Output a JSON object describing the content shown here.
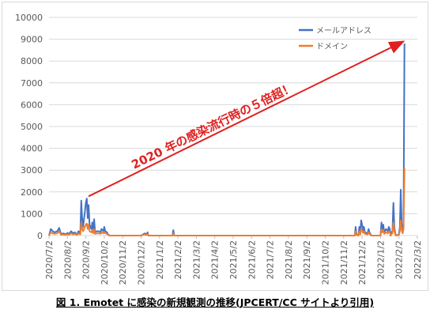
{
  "chart_data": {
    "type": "line",
    "title": "",
    "xlabel": "",
    "ylabel": "",
    "ylim": [
      0,
      10000
    ],
    "yticks": [
      "0",
      "1000",
      "2000",
      "3000",
      "4000",
      "5000",
      "6000",
      "7000",
      "8000",
      "9000",
      "10000"
    ],
    "xticks": [
      "2020/7/2",
      "2020/8/2",
      "2020/9/2",
      "2020/10/2",
      "2020/11/2",
      "2020/12/2",
      "2021/1/2",
      "2021/2/2",
      "2021/3/2",
      "2021/4/2",
      "2021/5/2",
      "2021/6/2",
      "2021/7/2",
      "2021/8/2",
      "2021/9/2",
      "2021/10/2",
      "2021/11/2",
      "2021/12/2",
      "2022/1/2",
      "2022/2/2",
      "2022/3/2"
    ],
    "legend_position": "top-right",
    "series": [
      {
        "name": "メールアドレス",
        "color": "#4472c4",
        "points": [
          [
            0,
            0
          ],
          [
            0.1,
            300
          ],
          [
            0.2,
            200
          ],
          [
            0.3,
            150
          ],
          [
            0.45,
            200
          ],
          [
            0.55,
            350
          ],
          [
            0.65,
            80
          ],
          [
            0.8,
            100
          ],
          [
            0.9,
            50
          ],
          [
            1.0,
            120
          ],
          [
            1.1,
            80
          ],
          [
            1.2,
            200
          ],
          [
            1.3,
            100
          ],
          [
            1.4,
            150
          ],
          [
            1.5,
            50
          ],
          [
            1.55,
            100
          ],
          [
            1.6,
            200
          ],
          [
            1.7,
            100
          ],
          [
            1.75,
            1600
          ],
          [
            1.8,
            800
          ],
          [
            1.85,
            400
          ],
          [
            1.95,
            1100
          ],
          [
            2.0,
            1500
          ],
          [
            2.05,
            1700
          ],
          [
            2.1,
            800
          ],
          [
            2.15,
            1400
          ],
          [
            2.2,
            500
          ],
          [
            2.3,
            300
          ],
          [
            2.35,
            600
          ],
          [
            2.4,
            200
          ],
          [
            2.45,
            750
          ],
          [
            2.5,
            150
          ],
          [
            2.6,
            200
          ],
          [
            2.7,
            200
          ],
          [
            2.8,
            150
          ],
          [
            2.85,
            300
          ],
          [
            2.95,
            200
          ],
          [
            3.0,
            400
          ],
          [
            3.05,
            200
          ],
          [
            3.15,
            150
          ],
          [
            3.2,
            50
          ],
          [
            3.3,
            0
          ],
          [
            3.5,
            0
          ],
          [
            4.0,
            0
          ],
          [
            4.5,
            0
          ],
          [
            5.0,
            0
          ],
          [
            5.2,
            100
          ],
          [
            5.3,
            50
          ],
          [
            5.35,
            150
          ],
          [
            5.4,
            0
          ],
          [
            6.0,
            0
          ],
          [
            6.6,
            0
          ],
          [
            6.7,
            0
          ],
          [
            6.75,
            250
          ],
          [
            6.8,
            0
          ],
          [
            8.0,
            0
          ],
          [
            10.0,
            0
          ],
          [
            12.0,
            0
          ],
          [
            14.0,
            0
          ],
          [
            16.0,
            0
          ],
          [
            16.5,
            0
          ],
          [
            16.6,
            0
          ],
          [
            16.65,
            400
          ],
          [
            16.7,
            50
          ],
          [
            16.8,
            0
          ],
          [
            16.85,
            400
          ],
          [
            16.9,
            100
          ],
          [
            16.95,
            700
          ],
          [
            17.0,
            500
          ],
          [
            17.05,
            250
          ],
          [
            17.1,
            400
          ],
          [
            17.15,
            150
          ],
          [
            17.3,
            100
          ],
          [
            17.35,
            300
          ],
          [
            17.4,
            150
          ],
          [
            17.5,
            0
          ],
          [
            17.7,
            0
          ],
          [
            18.0,
            0
          ],
          [
            18.05,
            600
          ],
          [
            18.1,
            300
          ],
          [
            18.15,
            500
          ],
          [
            18.2,
            150
          ],
          [
            18.3,
            300
          ],
          [
            18.4,
            200
          ],
          [
            18.45,
            400
          ],
          [
            18.5,
            300
          ],
          [
            18.55,
            0
          ],
          [
            18.6,
            150
          ],
          [
            18.65,
            200
          ],
          [
            18.7,
            1500
          ],
          [
            18.75,
            400
          ],
          [
            18.8,
            100
          ],
          [
            18.85,
            0
          ],
          [
            19.0,
            50
          ],
          [
            19.05,
            400
          ],
          [
            19.1,
            2100
          ],
          [
            19.15,
            500
          ],
          [
            19.2,
            200
          ],
          [
            19.25,
            600
          ],
          [
            19.3,
            8800
          ]
        ]
      },
      {
        "name": "ドメイン",
        "color": "#ed7d31",
        "points": [
          [
            0,
            0
          ],
          [
            0.1,
            150
          ],
          [
            0.2,
            100
          ],
          [
            0.3,
            80
          ],
          [
            0.45,
            100
          ],
          [
            0.55,
            200
          ],
          [
            0.65,
            40
          ],
          [
            0.8,
            50
          ],
          [
            0.9,
            30
          ],
          [
            1.0,
            60
          ],
          [
            1.1,
            40
          ],
          [
            1.2,
            100
          ],
          [
            1.3,
            50
          ],
          [
            1.4,
            80
          ],
          [
            1.5,
            30
          ],
          [
            1.55,
            50
          ],
          [
            1.6,
            100
          ],
          [
            1.7,
            50
          ],
          [
            1.75,
            600
          ],
          [
            1.8,
            300
          ],
          [
            1.85,
            200
          ],
          [
            1.95,
            400
          ],
          [
            2.0,
            500
          ],
          [
            2.05,
            550
          ],
          [
            2.1,
            300
          ],
          [
            2.15,
            500
          ],
          [
            2.2,
            200
          ],
          [
            2.3,
            150
          ],
          [
            2.35,
            250
          ],
          [
            2.4,
            100
          ],
          [
            2.45,
            300
          ],
          [
            2.5,
            80
          ],
          [
            2.6,
            100
          ],
          [
            2.7,
            100
          ],
          [
            2.8,
            80
          ],
          [
            2.85,
            150
          ],
          [
            2.95,
            100
          ],
          [
            3.0,
            150
          ],
          [
            3.05,
            100
          ],
          [
            3.15,
            80
          ],
          [
            3.2,
            30
          ],
          [
            3.3,
            0
          ],
          [
            3.5,
            0
          ],
          [
            4.0,
            0
          ],
          [
            4.5,
            0
          ],
          [
            5.0,
            0
          ],
          [
            5.2,
            50
          ],
          [
            5.3,
            30
          ],
          [
            5.35,
            80
          ],
          [
            5.4,
            0
          ],
          [
            6.0,
            0
          ],
          [
            6.6,
            0
          ],
          [
            6.7,
            0
          ],
          [
            6.75,
            100
          ],
          [
            6.8,
            0
          ],
          [
            8.0,
            0
          ],
          [
            10.0,
            0
          ],
          [
            12.0,
            0
          ],
          [
            14.0,
            0
          ],
          [
            16.0,
            0
          ],
          [
            16.5,
            0
          ],
          [
            16.6,
            0
          ],
          [
            16.65,
            200
          ],
          [
            16.7,
            30
          ],
          [
            16.8,
            0
          ],
          [
            16.85,
            200
          ],
          [
            16.9,
            50
          ],
          [
            16.95,
            300
          ],
          [
            17.0,
            250
          ],
          [
            17.05,
            120
          ],
          [
            17.1,
            200
          ],
          [
            17.15,
            80
          ],
          [
            17.3,
            50
          ],
          [
            17.35,
            150
          ],
          [
            17.4,
            80
          ],
          [
            17.5,
            0
          ],
          [
            17.7,
            0
          ],
          [
            18.0,
            0
          ],
          [
            18.05,
            300
          ],
          [
            18.1,
            150
          ],
          [
            18.15,
            250
          ],
          [
            18.2,
            80
          ],
          [
            18.3,
            150
          ],
          [
            18.4,
            100
          ],
          [
            18.45,
            200
          ],
          [
            18.5,
            150
          ],
          [
            18.55,
            0
          ],
          [
            18.6,
            80
          ],
          [
            18.65,
            100
          ],
          [
            18.7,
            600
          ],
          [
            18.75,
            200
          ],
          [
            18.8,
            50
          ],
          [
            18.85,
            0
          ],
          [
            19.0,
            30
          ],
          [
            19.05,
            200
          ],
          [
            19.1,
            700
          ],
          [
            19.15,
            250
          ],
          [
            19.2,
            100
          ],
          [
            19.25,
            300
          ],
          [
            19.3,
            3100
          ]
        ]
      }
    ],
    "annotation": {
      "text": "2020 年の感染流行時の５倍超！",
      "color": "#e02020",
      "from": [
        2.15,
        1800
      ],
      "to": [
        19.25,
        8900
      ]
    }
  },
  "caption": "図 1.  Emotet に感染の新規観測の推移(JPCERT/CC サイトより引用)"
}
